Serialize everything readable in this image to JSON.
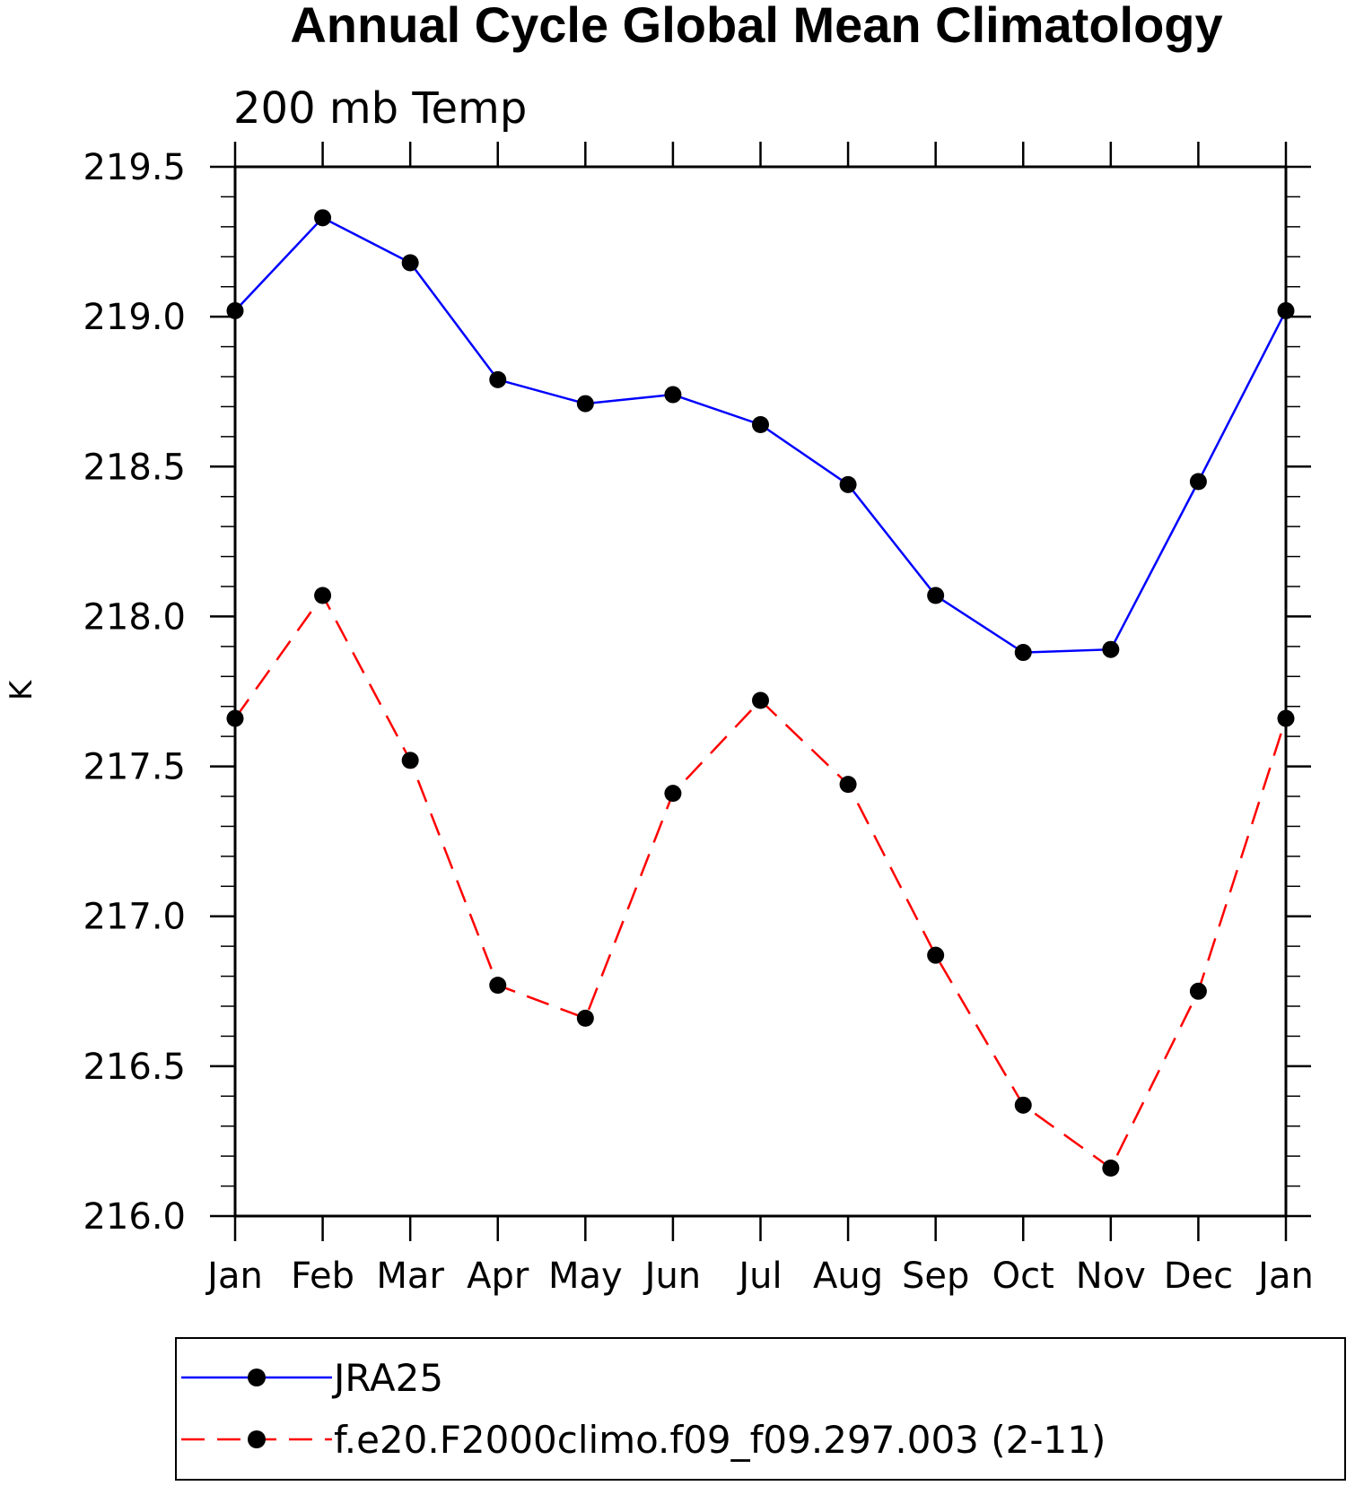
{
  "chart_data": {
    "type": "line",
    "title": "Annual Cycle Global Mean Climatology",
    "subtitle": "200 mb Temp",
    "ylabel": "K",
    "xlabel": "",
    "categories": [
      "Jan",
      "Feb",
      "Mar",
      "Apr",
      "May",
      "Jun",
      "Jul",
      "Aug",
      "Sep",
      "Oct",
      "Nov",
      "Dec",
      "Jan"
    ],
    "ylim": [
      216.0,
      219.5
    ],
    "yticks": [
      "216.0",
      "216.5",
      "217.0",
      "217.5",
      "218.0",
      "218.5",
      "219.0",
      "219.5"
    ],
    "grid": false,
    "legend_position": "bottom",
    "series": [
      {
        "name": "JRA25",
        "color": "#0000ff",
        "dash": "solid",
        "values": [
          219.02,
          219.33,
          219.18,
          218.79,
          218.71,
          218.74,
          218.64,
          218.44,
          218.07,
          217.88,
          217.89,
          218.45,
          219.02
        ]
      },
      {
        "name": "f.e20.F2000climo.f09_f09.297.003 (2-11)",
        "color": "#ff0000",
        "dash": "dashed",
        "values": [
          217.66,
          218.07,
          217.52,
          216.77,
          216.66,
          217.41,
          217.72,
          217.44,
          216.87,
          216.37,
          216.16,
          216.75,
          217.66
        ]
      }
    ]
  }
}
